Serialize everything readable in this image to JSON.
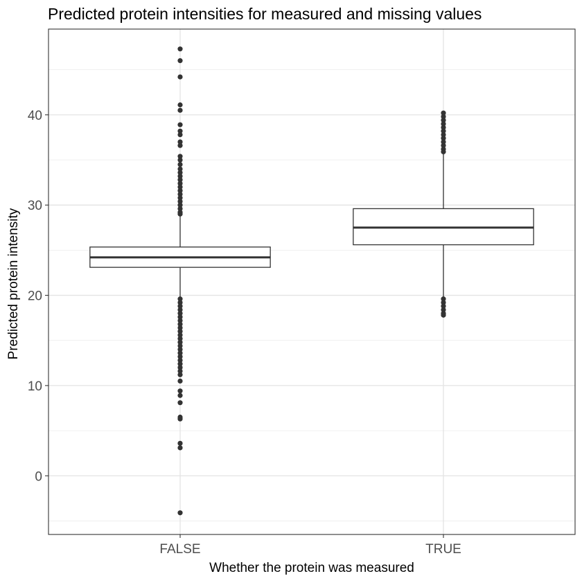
{
  "chart_data": {
    "type": "box",
    "title": "Predicted protein intensities for measured and missing values",
    "xlabel": "Whether the protein was measured",
    "ylabel": "Predicted protein intensity",
    "categories": [
      "FALSE",
      "TRUE"
    ],
    "ylim": [
      -6.5,
      49.5
    ],
    "yticks": [
      0,
      10,
      20,
      30,
      40
    ],
    "grid": true,
    "boxes": [
      {
        "category": "FALSE",
        "q1": 23.1,
        "median": 24.2,
        "q3": 25.35,
        "whisker_low": 19.7,
        "whisker_high": 28.9,
        "outliers": [
          47.3,
          46.0,
          44.2,
          41.1,
          40.5,
          38.9,
          38.2,
          37.8,
          37.0,
          36.6,
          35.4,
          35.0,
          34.5,
          34.0,
          33.6,
          33.2,
          32.8,
          32.4,
          32.0,
          31.6,
          31.2,
          30.8,
          30.4,
          30.0,
          29.6,
          29.2,
          29.0,
          19.6,
          19.2,
          18.8,
          18.4,
          18.0,
          17.6,
          17.2,
          16.8,
          16.4,
          16.0,
          15.6,
          15.2,
          14.8,
          14.4,
          14.0,
          13.6,
          13.2,
          12.8,
          12.4,
          12.0,
          11.6,
          11.2,
          10.5,
          9.4,
          8.9,
          8.1,
          6.5,
          6.3,
          3.6,
          3.1,
          -4.1
        ]
      },
      {
        "category": "TRUE",
        "q1": 25.6,
        "median": 27.5,
        "q3": 29.6,
        "whisker_low": 19.8,
        "whisker_high": 35.7,
        "outliers": [
          40.2,
          39.8,
          39.4,
          39.0,
          38.6,
          38.2,
          37.8,
          37.4,
          37.0,
          36.6,
          36.2,
          35.9,
          19.6,
          19.2,
          18.8,
          18.4,
          18.0,
          17.8
        ]
      }
    ]
  }
}
